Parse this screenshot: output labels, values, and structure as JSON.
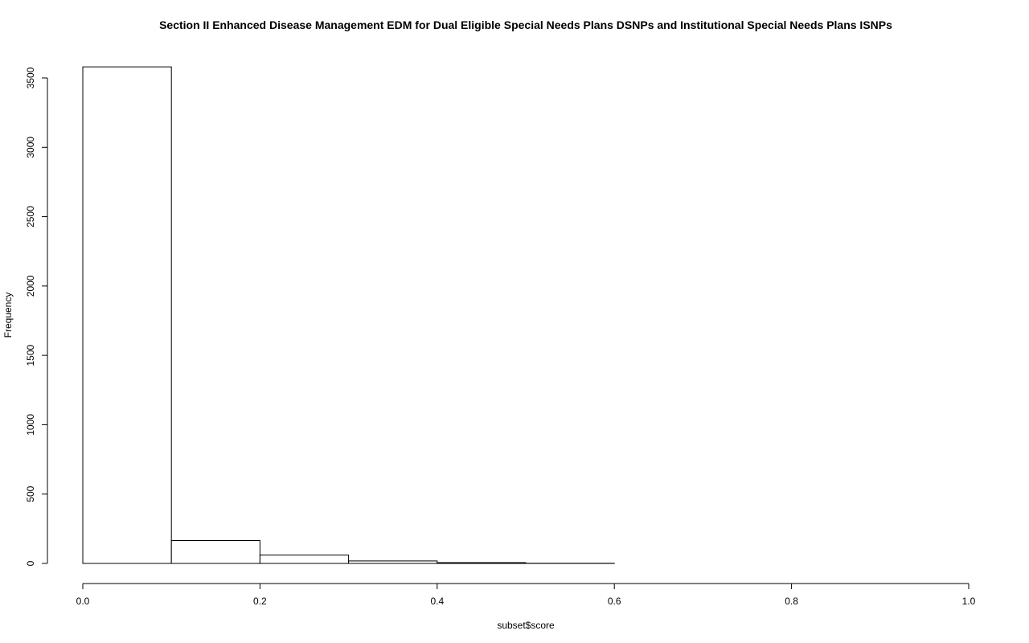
{
  "chart_data": {
    "type": "bar",
    "title": "Section II Enhanced Disease Management EDM for Dual Eligible Special Needs Plans DSNPs and Institutional Special Needs Plans ISNPs",
    "xlabel": "subset$score",
    "ylabel": "Frequency",
    "bins": [
      {
        "start": 0.0,
        "end": 0.1,
        "count": 3580
      },
      {
        "start": 0.1,
        "end": 0.2,
        "count": 165
      },
      {
        "start": 0.2,
        "end": 0.3,
        "count": 60
      },
      {
        "start": 0.3,
        "end": 0.4,
        "count": 18
      },
      {
        "start": 0.4,
        "end": 0.5,
        "count": 6
      },
      {
        "start": 0.5,
        "end": 0.6,
        "count": 1
      },
      {
        "start": 0.6,
        "end": 0.7,
        "count": 0
      },
      {
        "start": 0.7,
        "end": 0.8,
        "count": 0
      },
      {
        "start": 0.8,
        "end": 0.9,
        "count": 0
      },
      {
        "start": 0.9,
        "end": 1.0,
        "count": 0
      }
    ],
    "x_ticks": [
      "0.0",
      "0.2",
      "0.4",
      "0.6",
      "0.8",
      "1.0"
    ],
    "y_ticks": [
      "0",
      "500",
      "1000",
      "1500",
      "2000",
      "2500",
      "3000",
      "3500"
    ],
    "xlim": [
      0,
      1
    ],
    "ylim": [
      0,
      3500
    ],
    "grid": false,
    "legend": "none",
    "colors": {
      "bar_fill": "#ffffff",
      "bar_stroke": "#000000",
      "axis": "#000000"
    }
  }
}
